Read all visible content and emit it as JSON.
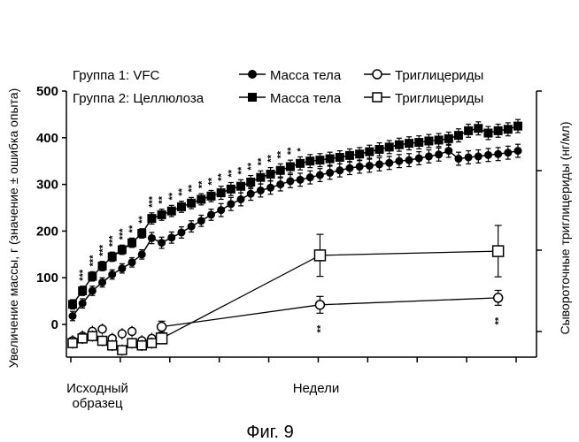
{
  "chart_data": {
    "type": "line",
    "caption": "Фиг. 9",
    "ylabel_left": "Увеличение массы, г (значение ± ошибка опыта)",
    "ylabel_right": "Сывороточные триглицериды (нг/мл)",
    "xlabel": "Недели",
    "x_start_label_line1": "Исходный",
    "x_start_label_line2": "образец",
    "ylim": [
      -50,
      500
    ],
    "y_ticks": [
      "0",
      "100",
      "200",
      "300",
      "400",
      "500"
    ],
    "y_tick_values": [
      0,
      100,
      200,
      300,
      400,
      500
    ],
    "legend": {
      "group1": "Группа 1: VFC",
      "group2": "Группа 2: Целлюлоза",
      "body_mass": "Масса тела",
      "triglycerides": "Триглицериды"
    },
    "weight_weeks": [
      1,
      2,
      3,
      4,
      5,
      6,
      7,
      8,
      9,
      10,
      11,
      12,
      13,
      14,
      15,
      16,
      17,
      18,
      19,
      20,
      21,
      22,
      23,
      24,
      25,
      26,
      27,
      28,
      29,
      30,
      31,
      32,
      33,
      34,
      35,
      36,
      37,
      38,
      39,
      40,
      41,
      42,
      43,
      44,
      45,
      46
    ],
    "series": [
      {
        "name": "Группа 1: VFC — Масса тела",
        "marker": "filled-circle",
        "values": [
          18,
          45,
          72,
          90,
          107,
          120,
          133,
          150,
          185,
          175,
          186,
          197,
          210,
          222,
          235,
          245,
          258,
          268,
          280,
          287,
          293,
          300,
          307,
          310,
          315,
          320,
          325,
          330,
          335,
          338,
          340,
          343,
          346,
          350,
          352,
          356,
          360,
          364,
          372,
          355,
          358,
          360,
          363,
          365,
          368,
          372
        ],
        "error": [
          10,
          10,
          10,
          10,
          10,
          10,
          10,
          10,
          12,
          12,
          12,
          12,
          12,
          12,
          12,
          14,
          14,
          14,
          14,
          14,
          14,
          14,
          14,
          14,
          14,
          14,
          14,
          14,
          14,
          14,
          14,
          14,
          14,
          14,
          14,
          14,
          14,
          14,
          14,
          14,
          14,
          14,
          14,
          14,
          14,
          14
        ]
      },
      {
        "name": "Группа 2: Целлюлоза — Масса тела",
        "marker": "filled-square",
        "values": [
          43,
          72,
          103,
          125,
          145,
          160,
          175,
          195,
          227,
          235,
          243,
          252,
          260,
          268,
          275,
          282,
          290,
          296,
          305,
          315,
          322,
          330,
          338,
          345,
          350,
          352,
          355,
          358,
          362,
          365,
          370,
          375,
          380,
          385,
          388,
          390,
          393,
          395,
          398,
          405,
          415,
          420,
          410,
          415,
          418,
          425
        ],
        "error": [
          10,
          10,
          10,
          10,
          10,
          10,
          10,
          10,
          12,
          12,
          12,
          12,
          12,
          12,
          12,
          14,
          14,
          14,
          14,
          14,
          14,
          14,
          14,
          14,
          14,
          14,
          14,
          14,
          14,
          14,
          14,
          14,
          14,
          14,
          14,
          14,
          14,
          14,
          14,
          14,
          14,
          14,
          14,
          14,
          14,
          14
        ]
      }
    ],
    "weight_significance": [
      {
        "week": 2,
        "label": "***"
      },
      {
        "week": 3,
        "label": "***"
      },
      {
        "week": 4,
        "label": "***"
      },
      {
        "week": 5,
        "label": "***"
      },
      {
        "week": 6,
        "label": "***"
      },
      {
        "week": 7,
        "label": "**"
      },
      {
        "week": 8,
        "label": "**"
      },
      {
        "week": 9,
        "label": "***"
      },
      {
        "week": 10,
        "label": "**"
      },
      {
        "week": 11,
        "label": "**"
      },
      {
        "week": 12,
        "label": "**"
      },
      {
        "week": 13,
        "label": "**"
      },
      {
        "week": 14,
        "label": "**"
      },
      {
        "week": 15,
        "label": "**"
      },
      {
        "week": 16,
        "label": "**"
      },
      {
        "week": 17,
        "label": "**"
      },
      {
        "week": 18,
        "label": "**"
      },
      {
        "week": 19,
        "label": "**"
      },
      {
        "week": 20,
        "label": "**"
      },
      {
        "week": 21,
        "label": "**"
      },
      {
        "week": 22,
        "label": "**"
      },
      {
        "week": 23,
        "label": "**"
      },
      {
        "week": 24,
        "label": "*"
      }
    ],
    "triglycerides": {
      "unit_note": "plotted on the right axis (unlabeled ticks); values below expressed on left-axis scale",
      "early_points": {
        "group1": [
          {
            "week": 1,
            "v": -35
          },
          {
            "week": 2,
            "v": -25
          },
          {
            "week": 3,
            "v": -15
          },
          {
            "week": 4,
            "v": -10
          },
          {
            "week": 5,
            "v": -30
          },
          {
            "week": 6,
            "v": -20
          },
          {
            "week": 7,
            "v": -15
          },
          {
            "week": 8,
            "v": -35
          },
          {
            "week": 9,
            "v": -30
          },
          {
            "week": 10,
            "v": -5
          }
        ],
        "group2": [
          {
            "week": 1,
            "v": -40
          },
          {
            "week": 2,
            "v": -30
          },
          {
            "week": 3,
            "v": -25
          },
          {
            "week": 4,
            "v": -35
          },
          {
            "week": 5,
            "v": -45
          },
          {
            "week": 6,
            "v": -55
          },
          {
            "week": 7,
            "v": -40
          },
          {
            "week": 8,
            "v": -45
          },
          {
            "week": 9,
            "v": -40
          },
          {
            "week": 10,
            "v": -30
          }
        ]
      },
      "series": [
        {
          "name": "Группа 1: VFC — Триглицериды",
          "marker": "open-circle",
          "points": [
            {
              "week": 10,
              "v": -5,
              "err": 12
            },
            {
              "week": 26,
              "v": 42,
              "err": 18
            },
            {
              "week": 44,
              "v": 57,
              "err": 16
            }
          ]
        },
        {
          "name": "Группа 2: Целлюлоза — Триглицериды",
          "marker": "open-square",
          "points": [
            {
              "week": 10,
              "v": -30,
              "err": 10
            },
            {
              "week": 26,
              "v": 148,
              "err": 45
            },
            {
              "week": 44,
              "v": 157,
              "err": 55
            }
          ]
        }
      ],
      "significance": [
        {
          "week": 26,
          "label": "**"
        },
        {
          "week": 44,
          "label": "**"
        }
      ]
    }
  }
}
